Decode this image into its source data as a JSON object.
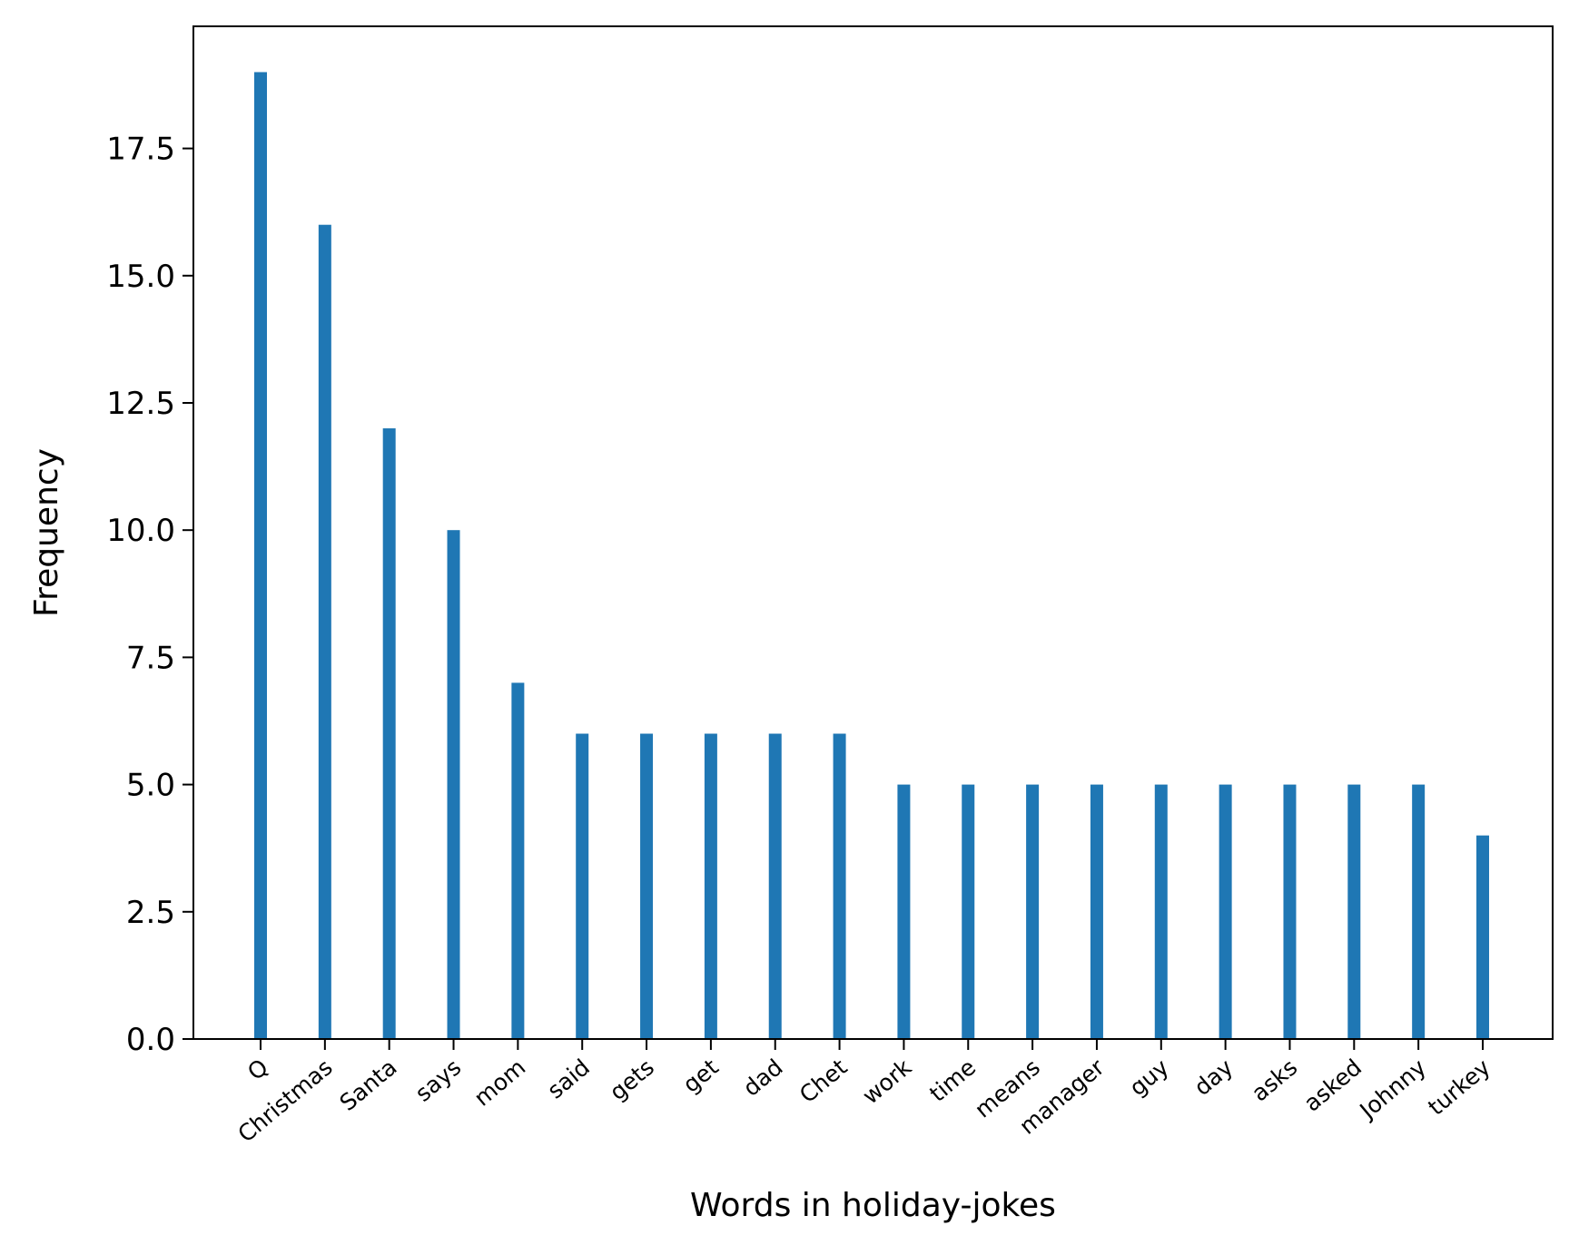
{
  "chart_data": {
    "type": "bar",
    "title": "",
    "xlabel": "Words in holiday-jokes",
    "ylabel": "Frequency",
    "categories": [
      "Q",
      "Christmas",
      "Santa",
      "says",
      "mom",
      "said",
      "gets",
      "get",
      "dad",
      "Chet",
      "work",
      "time",
      "means",
      "manager",
      "guy",
      "day",
      "asks",
      "asked",
      "Johnny",
      "turkey"
    ],
    "values": [
      19,
      16,
      12,
      10,
      7,
      6,
      6,
      6,
      6,
      6,
      5,
      5,
      5,
      5,
      5,
      5,
      5,
      5,
      5,
      4
    ],
    "ylim": [
      0,
      19.9
    ],
    "yticks": [
      0,
      2.5,
      5,
      7.5,
      10,
      12.5,
      15,
      17.5
    ],
    "ytick_labels": [
      "0.0",
      "2.5",
      "5.0",
      "7.5",
      "10.0",
      "12.5",
      "15.0",
      "17.5"
    ],
    "grid": false,
    "legend": "none",
    "bar_color": "#1f77b4"
  }
}
